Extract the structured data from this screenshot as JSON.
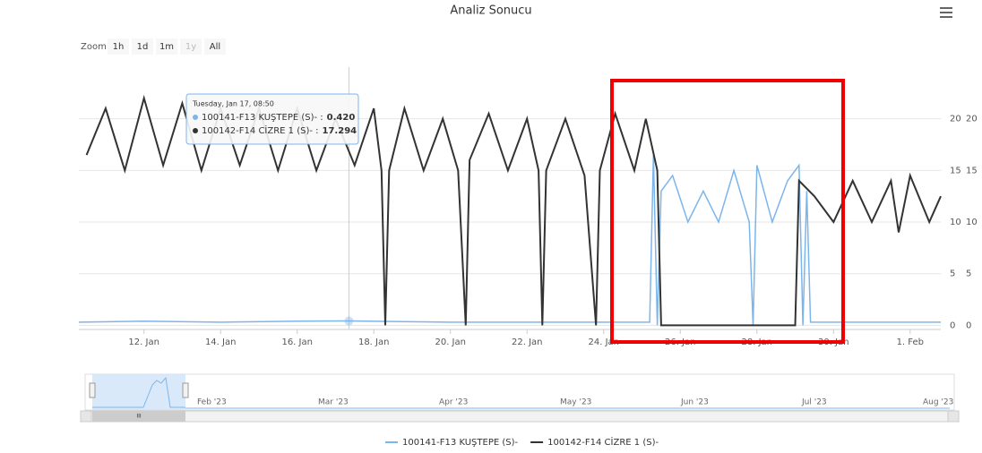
{
  "chart_data": {
    "type": "line",
    "title": "Analiz Sonucu",
    "series": [
      {
        "name": "100141-F13 KUŞTEPE (S)-",
        "color": "#7cb5ec",
        "axis": "y",
        "x": [
          10.3,
          12,
          14,
          16,
          17.35,
          20,
          22,
          25,
          25.2,
          25.3,
          25.4,
          25.5,
          25.8,
          26.2,
          26.6,
          27,
          27.4,
          27.8,
          27.9,
          28,
          28.4,
          28.8,
          29.1,
          29.2,
          29.3,
          29.4,
          32.8
        ],
        "values": [
          0.3,
          0.4,
          0.3,
          0.4,
          0.42,
          0.3,
          0.3,
          0.3,
          0.3,
          16.5,
          0,
          13,
          14.5,
          10,
          13,
          10,
          15,
          10,
          0,
          15.5,
          10,
          14,
          15.5,
          0,
          13,
          0.3,
          0.3
        ]
      },
      {
        "name": "100142-F14 CİZRE 1 (S)-",
        "color": "#333333",
        "axis": "y2",
        "x": [
          10.5,
          11,
          11.5,
          12,
          12.5,
          13,
          13.5,
          14,
          14.5,
          15,
          15.5,
          16,
          16.5,
          17,
          17.5,
          18,
          18.2,
          18.3,
          18.4,
          18.8,
          19.3,
          19.8,
          20.2,
          20.4,
          20.5,
          21,
          21.5,
          22,
          22.3,
          22.4,
          22.5,
          23,
          23.5,
          23.8,
          23.9,
          24.3,
          24.8,
          25.1,
          25.4,
          25.5,
          29,
          29.1,
          29.5,
          30,
          30.5,
          31,
          31.5,
          31.7,
          32,
          32.5,
          32.8
        ],
        "values": [
          16.5,
          21,
          15,
          22,
          15.5,
          21.5,
          15,
          21,
          15.5,
          21,
          15,
          21,
          15,
          20,
          15.5,
          21,
          15,
          0,
          15,
          21,
          15,
          20,
          15,
          0,
          16,
          20.5,
          15,
          20,
          15,
          0,
          15,
          20,
          14.5,
          0,
          15,
          20.5,
          15,
          20,
          15,
          0,
          0,
          14,
          12.5,
          10,
          14,
          10,
          14,
          9,
          14.5,
          10,
          12.5
        ]
      }
    ],
    "xlim": [
      10.3,
      32.8
    ],
    "xticks": [
      {
        "value": 12,
        "label": "12. Jan"
      },
      {
        "value": 14,
        "label": "14. Jan"
      },
      {
        "value": 16,
        "label": "16. Jan"
      },
      {
        "value": 18,
        "label": "18. Jan"
      },
      {
        "value": 20,
        "label": "20. Jan"
      },
      {
        "value": 22,
        "label": "22. Jan"
      },
      {
        "value": 24,
        "label": "24. Jan"
      },
      {
        "value": 26,
        "label": "26. Jan"
      },
      {
        "value": 28,
        "label": "28. Jan"
      },
      {
        "value": 30,
        "label": "30. Jan"
      },
      {
        "value": 32,
        "label": "1. Feb"
      }
    ],
    "ylim": [
      -0.4,
      25
    ],
    "yticks": [
      0,
      5,
      10,
      15,
      20
    ],
    "y2lim": [
      -0.4,
      25
    ],
    "y2ticks": [
      0,
      5,
      10,
      15,
      20
    ],
    "grid": true,
    "legend": "bottom"
  },
  "ui": {
    "zoom_label": "Zoom",
    "zoom_buttons": [
      "1h",
      "1d",
      "1m",
      "1y",
      "All"
    ],
    "tooltip": {
      "header": "Tuesday, Jan 17, 08:50",
      "x": 17.35,
      "rows": [
        {
          "label": "100141-F13 KUŞTEPE (S)- :",
          "value": "0.420"
        },
        {
          "label": "100142-F14 CİZRE 1 (S)- :",
          "value": "17.294"
        }
      ]
    },
    "navigator_labels": [
      "Feb '23",
      "Mar '23",
      "Apr '23",
      "May '23",
      "Jun '23",
      "Jul '23",
      "Aug '23"
    ],
    "scrollbar_label": "III"
  }
}
